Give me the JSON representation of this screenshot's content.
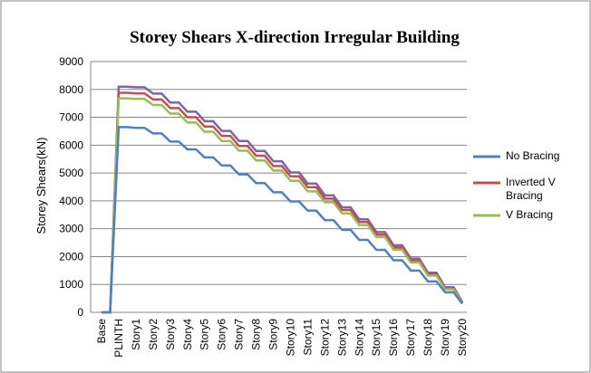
{
  "chart_data": {
    "type": "line",
    "title": "Storey Shears X-direction Irregular Building",
    "y_label": "Storey Shears(kN)",
    "categories": [
      "Base",
      null,
      "PLINTH",
      null,
      "Story1",
      null,
      "Story2",
      null,
      "Story3",
      null,
      "Story4",
      null,
      "Story5",
      null,
      "Story6",
      null,
      "Story7",
      null,
      "Story8",
      null,
      "Story9",
      null,
      "Story10",
      null,
      "Story11",
      null,
      "Story12",
      null,
      "Story13",
      null,
      "Story14",
      null,
      "Story15",
      null,
      "Story16",
      null,
      "Story17",
      null,
      "Story18",
      null,
      "Story19",
      null,
      "Story20"
    ],
    "series": [
      {
        "color": "#8064a2",
        "values": [
          0,
          0,
          8100,
          8100,
          8080,
          8080,
          7850,
          7850,
          7530,
          7530,
          7200,
          7200,
          6860,
          6860,
          6510,
          6510,
          6150,
          6150,
          5790,
          5790,
          5420,
          5420,
          5020,
          5020,
          4620,
          4620,
          4200,
          4200,
          3770,
          3770,
          3340,
          3340,
          2880,
          2880,
          2410,
          2410,
          1930,
          1930,
          1420,
          1420,
          900,
          900,
          370
        ]
      },
      {
        "name": "Inverted V Bracing",
        "color": "#c0504d",
        "values": [
          0,
          0,
          7880,
          7880,
          7860,
          7860,
          7640,
          7640,
          7330,
          7330,
          7000,
          7000,
          6670,
          6670,
          6330,
          6330,
          5970,
          5970,
          5620,
          5620,
          5250,
          5250,
          4880,
          4880,
          4490,
          4490,
          4080,
          4080,
          3670,
          3670,
          3240,
          3240,
          2790,
          2790,
          2330,
          2330,
          1860,
          1860,
          1370,
          1370,
          870,
          870,
          360
        ]
      },
      {
        "name": "V Bracing",
        "color": "#9bbb59",
        "values": [
          0,
          0,
          7680,
          7680,
          7660,
          7660,
          7440,
          7440,
          7130,
          7130,
          6810,
          6810,
          6480,
          6480,
          6150,
          6150,
          5800,
          5800,
          5450,
          5450,
          5090,
          5090,
          4720,
          4720,
          4340,
          4340,
          3950,
          3950,
          3550,
          3550,
          3130,
          3130,
          2700,
          2700,
          2250,
          2250,
          1790,
          1790,
          1320,
          1320,
          830,
          830,
          330
        ]
      },
      {
        "name": "No Bracing",
        "color": "#4f81bd",
        "values": [
          0,
          0,
          6650,
          6650,
          6620,
          6620,
          6420,
          6420,
          6130,
          6130,
          5850,
          5850,
          5560,
          5560,
          5270,
          5270,
          4950,
          4950,
          4640,
          4640,
          4310,
          4310,
          3980,
          3980,
          3650,
          3650,
          3310,
          3310,
          2960,
          2960,
          2600,
          2600,
          2240,
          2240,
          1870,
          1870,
          1500,
          1500,
          1110,
          1110,
          720,
          720,
          310
        ]
      }
    ],
    "legend_order": [
      3,
      1,
      2
    ],
    "ylim": [
      0,
      9000
    ],
    "yticks": [
      0,
      1000,
      2000,
      3000,
      4000,
      5000,
      6000,
      7000,
      8000,
      9000
    ],
    "grid": true
  }
}
